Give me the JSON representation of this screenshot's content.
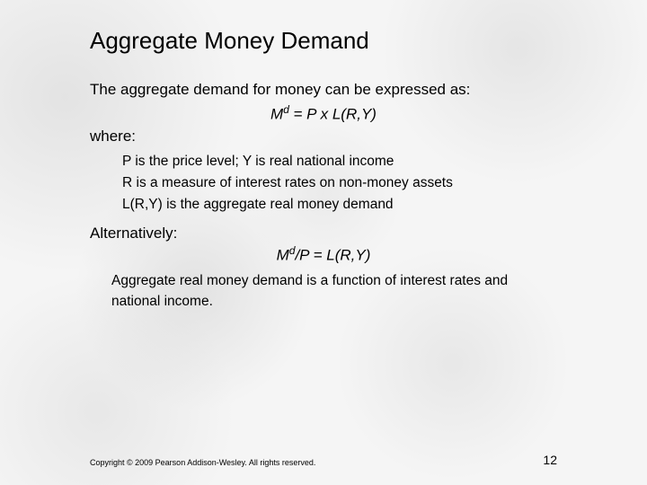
{
  "slide": {
    "title": "Aggregate Money Demand",
    "intro": "The aggregate demand for money can be expressed as:",
    "eq1_M": "M",
    "eq1_sup": "d",
    "eq1_rest": " = P x L(R,Y)",
    "where": "where:",
    "def_p": "P is the price level; Y is real national income",
    "def_r": "R is a measure of interest rates on non-money assets",
    "def_l": "L(R,Y) is the aggregate real money demand",
    "alternatively": "Alternatively:",
    "eq2_M": "M",
    "eq2_sup": "d",
    "eq2_rest": "/P = L(R,Y)",
    "closing": "Aggregate real money demand is a function of interest rates and national income.",
    "copyright": "Copyright © 2009 Pearson Addison-Wesley. All rights reserved.",
    "page_number": "12"
  }
}
